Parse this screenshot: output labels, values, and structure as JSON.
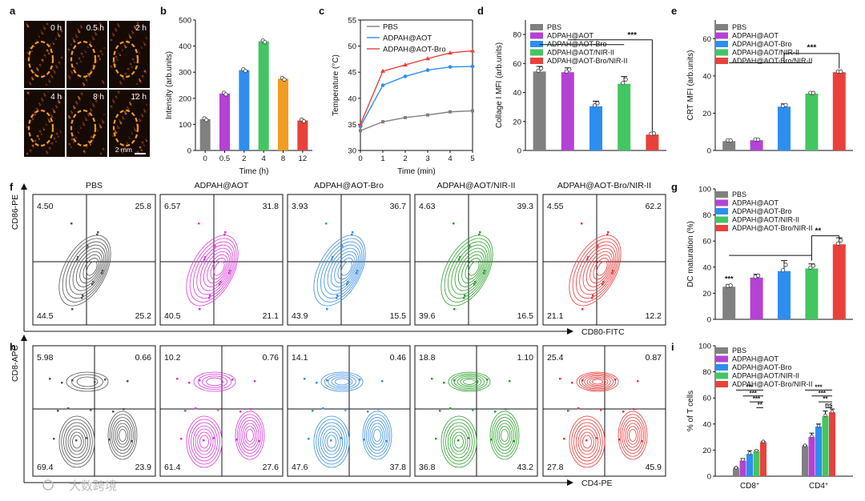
{
  "figure": {
    "panel_labels": [
      "a",
      "b",
      "c",
      "d",
      "e",
      "f",
      "g",
      "h",
      "i"
    ],
    "scale_bar": "2 mm",
    "watermark": "大数跨境"
  },
  "colors": {
    "PBS": "#808080",
    "ADPAH@AOT": "#b442d4",
    "ADPAH@AOT-Bro": "#2d8ef0",
    "ADPAH@AOT/NIR-II": "#43c562",
    "ADPAH@AOT-Bro/NIR-II": "#e8413c",
    "orange": "#f39c22",
    "flowPBS": "#555555",
    "flowAOT": "#d93ad9",
    "flowBro": "#3c8fe0",
    "flowNIR": "#2ea02e",
    "flowBroNIR": "#e83a3a"
  },
  "panel_a": {
    "timepoints": [
      "0 h",
      "0.5 h",
      "2 h",
      "4 h",
      "8 h",
      "12 h"
    ]
  },
  "chart_data": [
    {
      "id": "b",
      "type": "bar",
      "categories": [
        "0",
        "0.5",
        "2",
        "4",
        "8",
        "12"
      ],
      "values": [
        120,
        218,
        308,
        418,
        275,
        115
      ],
      "bar_colors": [
        "#808080",
        "#b442d4",
        "#2d8ef0",
        "#43c562",
        "#f39c22",
        "#e8413c"
      ],
      "xlabel": "Time (h)",
      "ylabel": "Intensity (arb.units)",
      "ylim": [
        0,
        500
      ],
      "yticks": [
        0,
        100,
        200,
        300,
        400,
        500
      ]
    },
    {
      "id": "c",
      "type": "line",
      "x": [
        0,
        1,
        2,
        3,
        4,
        5
      ],
      "series": [
        {
          "name": "PBS",
          "values": [
            33.8,
            35.5,
            36.3,
            36.8,
            37.4,
            37.6
          ],
          "color": "#808080"
        },
        {
          "name": "ADPAH@AOT",
          "values": [
            34.6,
            42.5,
            44.2,
            45.4,
            46.0,
            46.1
          ],
          "color": "#2d8ef0"
        },
        {
          "name": "ADPAH@AOT-Bro",
          "values": [
            35.0,
            45.2,
            46.4,
            47.6,
            48.7,
            49.1
          ],
          "color": "#e8413c"
        }
      ],
      "xlabel": "Time (min)",
      "ylabel": "Temperature (°C)",
      "xlim": [
        0,
        5
      ],
      "ylim": [
        30,
        55
      ],
      "xticks": [
        0,
        1,
        2,
        3,
        4,
        5
      ],
      "yticks": [
        30,
        35,
        40,
        45,
        50,
        55
      ]
    },
    {
      "id": "d",
      "type": "bar",
      "categories": [
        "PBS",
        "ADPAH@AOT",
        "ADPAH@AOT-Bro",
        "ADPAH@AOT/NIR-II",
        "ADPAH@AOT-Bro/NIR-II"
      ],
      "values": [
        54.5,
        54,
        30.5,
        46,
        11
      ],
      "errors": [
        3.5,
        3,
        3.5,
        5,
        1.2
      ],
      "legend": [
        "PBS",
        "ADPAH@AOT",
        "ADPAH@AOT-Bro",
        "ADPAH@AOT/NIR-II",
        "ADPAH@AOT-Bro/NIR-II"
      ],
      "ylabel": "Collage I MFI (arb.units)",
      "ylim": [
        0,
        90
      ],
      "yticks": [
        0,
        20,
        40,
        60,
        80
      ],
      "significance": "***"
    },
    {
      "id": "e",
      "type": "bar",
      "categories": [
        "PBS",
        "ADPAH@AOT",
        "ADPAH@AOT-Bro",
        "ADPAH@AOT/NIR-II",
        "ADPAH@AOT-Bro/NIR-II"
      ],
      "values": [
        5,
        5.5,
        23.5,
        30.5,
        42
      ],
      "errors": [
        0.5,
        0.6,
        1.5,
        0.6,
        0.5
      ],
      "legend": [
        "PBS",
        "ADPAH@AOT",
        "ADPAH@AOT-Bro",
        "ADPAH@AOT/NIR-II",
        "ADPAH@AOT-Bro/NIR-II"
      ],
      "ylabel": "CRT MFI (arb.units)",
      "ylim": [
        0,
        70
      ],
      "yticks": [
        0,
        20,
        40,
        60
      ],
      "significance": "***"
    },
    {
      "id": "g",
      "type": "bar",
      "categories": [
        "PBS",
        "ADPAH@AOT",
        "ADPAH@AOT-Bro",
        "ADPAH@AOT/NIR-II",
        "ADPAH@AOT-Bro/NIR-II"
      ],
      "values": [
        25,
        32,
        37,
        39,
        57.5
      ],
      "errors": [
        1.5,
        2.5,
        8,
        3.5,
        5
      ],
      "legend": [
        "PBS",
        "ADPAH@AOT",
        "ADPAH@AOT-Bro",
        "ADPAH@AOT/NIR-II",
        "ADPAH@AOT-Bro/NIR-II"
      ],
      "ylabel": "DC maturation (%)",
      "ylim": [
        0,
        100
      ],
      "yticks": [
        0,
        20,
        40,
        60,
        80,
        100
      ],
      "significance": [
        "***",
        "**"
      ]
    },
    {
      "id": "i",
      "type": "bar",
      "categories": [
        "CD8+",
        "CD4+"
      ],
      "category_labels": [
        "CD8",
        "CD4"
      ],
      "series": [
        {
          "name": "PBS",
          "values": [
            6,
            23
          ],
          "errors": [
            0.5,
            0.5
          ],
          "color": "#808080"
        },
        {
          "name": "ADPAH@AOT",
          "values": [
            12,
            30
          ],
          "errors": [
            1.5,
            3
          ],
          "color": "#b442d4"
        },
        {
          "name": "ADPAH@AOT-Bro",
          "values": [
            17,
            38
          ],
          "errors": [
            2.5,
            2
          ],
          "color": "#2d8ef0"
        },
        {
          "name": "ADPAH@AOT/NIR-II",
          "values": [
            19,
            46
          ],
          "errors": [
            0.8,
            4
          ],
          "color": "#43c562"
        },
        {
          "name": "ADPAH@AOT-Bro/NIR-II",
          "values": [
            26,
            49
          ],
          "errors": [
            0.5,
            2.5
          ],
          "color": "#e8413c"
        }
      ],
      "ylabel": "% of T cells",
      "ylim": [
        0,
        100
      ],
      "yticks": [
        0,
        20,
        40,
        60,
        80,
        100
      ],
      "significance_cd8": [
        "***",
        "***",
        "***",
        "**"
      ],
      "significance_cd4": [
        "***",
        "***",
        "**",
        "ns"
      ]
    },
    {
      "id": "f",
      "type": "table",
      "xlabel": "CD80-FITC",
      "ylabel": "CD86-PE",
      "groups": [
        {
          "name": "PBS",
          "q": [
            "4.50",
            "25.8",
            "44.5",
            "25.2"
          ],
          "color": "#555555"
        },
        {
          "name": "ADPAH@AOT",
          "q": [
            "6.57",
            "31.8",
            "40.5",
            "21.1"
          ],
          "color": "#d93ad9"
        },
        {
          "name": "ADPAH@AOT-Bro",
          "q": [
            "3.93",
            "36.7",
            "43.9",
            "15.5"
          ],
          "color": "#3c8fe0"
        },
        {
          "name": "ADPAH@AOT/NIR-II",
          "q": [
            "4.63",
            "39.3",
            "39.6",
            "16.5"
          ],
          "color": "#2ea02e"
        },
        {
          "name": "ADPAH@AOT-Bro/NIR-II",
          "q": [
            "4.55",
            "62.2",
            "21.1",
            "12.2"
          ],
          "color": "#e83a3a"
        }
      ]
    },
    {
      "id": "h",
      "type": "table",
      "xlabel": "CD4-PE",
      "ylabel": "CD8-APC",
      "groups": [
        {
          "q": [
            "5.98",
            "0.66",
            "69.4",
            "23.9"
          ],
          "color": "#555555"
        },
        {
          "q": [
            "10.2",
            "0.76",
            "61.4",
            "27.6"
          ],
          "color": "#d93ad9"
        },
        {
          "q": [
            "14.1",
            "0.46",
            "47.6",
            "37.8"
          ],
          "color": "#3c8fe0"
        },
        {
          "q": [
            "18.8",
            "1.10",
            "36.8",
            "43.2"
          ],
          "color": "#2ea02e"
        },
        {
          "q": [
            "25.4",
            "0.87",
            "27.8",
            "45.9"
          ],
          "color": "#e83a3a"
        }
      ]
    }
  ]
}
